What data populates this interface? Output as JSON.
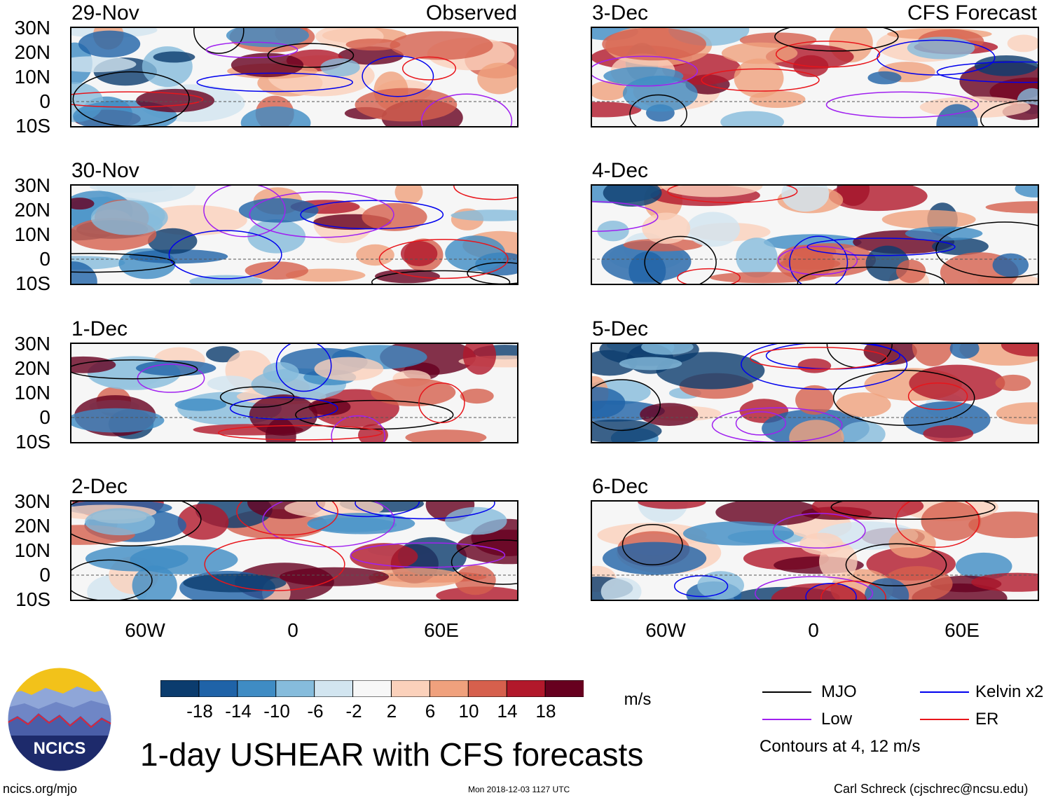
{
  "panels_left": {
    "label": "Observed",
    "dates": [
      "29-Nov",
      "30-Nov",
      "1-Dec",
      "2-Dec"
    ]
  },
  "panels_right": {
    "label": "CFS Forecast",
    "dates": [
      "3-Dec",
      "4-Dec",
      "5-Dec",
      "6-Dec"
    ]
  },
  "lat_ticks": [
    "30N",
    "20N",
    "10N",
    "0",
    "10S"
  ],
  "lon_ticks": [
    "60W",
    "0",
    "60E"
  ],
  "colorbar": {
    "ticks": [
      "-18",
      "-14",
      "-10",
      "-6",
      "-2",
      "2",
      "6",
      "10",
      "14",
      "18"
    ],
    "colors": [
      "#0b3c6e",
      "#1f63a8",
      "#3f8cc4",
      "#86bcdc",
      "#d2e5f0",
      "#f7f7f7",
      "#fbd1bb",
      "#f0a17d",
      "#d6604d",
      "#b2182b",
      "#67001f"
    ],
    "unit": "m/s"
  },
  "legend": {
    "items": [
      {
        "label": "MJO",
        "color": "#000000"
      },
      {
        "label": "Kelvin x2",
        "color": "#0000ee"
      },
      {
        "label": "Low",
        "color": "#a020f0"
      },
      {
        "label": "ER",
        "color": "#e8151b"
      }
    ],
    "note": "Contours at 4, 12 m/s"
  },
  "title": "1-day USHEAR with CFS forecasts",
  "logo_text": "NCICS",
  "footer": {
    "left": "ncics.org/mjo",
    "center": "Mon 2018-12-03 1127 UTC",
    "right": "Carl Schreck (cjschrec@ncsu.edu)"
  }
}
